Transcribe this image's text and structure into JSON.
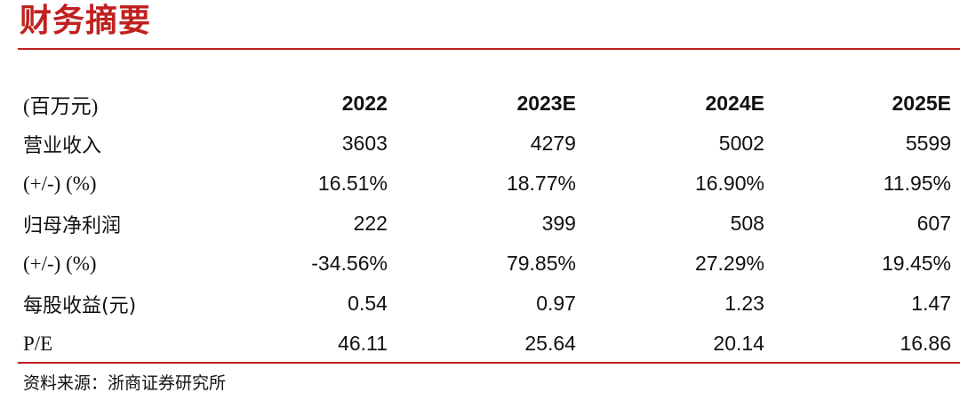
{
  "title": "财务摘要",
  "table": {
    "header": {
      "unit": "(百万元)",
      "years": [
        "2022",
        "2023E",
        "2024E",
        "2025E"
      ]
    },
    "rows": [
      {
        "label": "营业收入",
        "values": [
          "3603",
          "4279",
          "5002",
          "5599"
        ]
      },
      {
        "label": "(+/-) (%)",
        "values": [
          "16.51%",
          "18.77%",
          "16.90%",
          "11.95%"
        ]
      },
      {
        "label": "归母净利润",
        "values": [
          "222",
          "399",
          "508",
          "607"
        ]
      },
      {
        "label": "(+/-) (%)",
        "values": [
          "-34.56%",
          "79.85%",
          "27.29%",
          "19.45%"
        ]
      },
      {
        "label": "每股收益(元)",
        "values": [
          "0.54",
          "0.97",
          "1.23",
          "1.47"
        ]
      },
      {
        "label": "P/E",
        "values": [
          "46.11",
          "25.64",
          "20.14",
          "16.86"
        ]
      }
    ]
  },
  "source": "资料来源：浙商证券研究所",
  "colors": {
    "accent": "#c0211f",
    "text": "#111111"
  }
}
